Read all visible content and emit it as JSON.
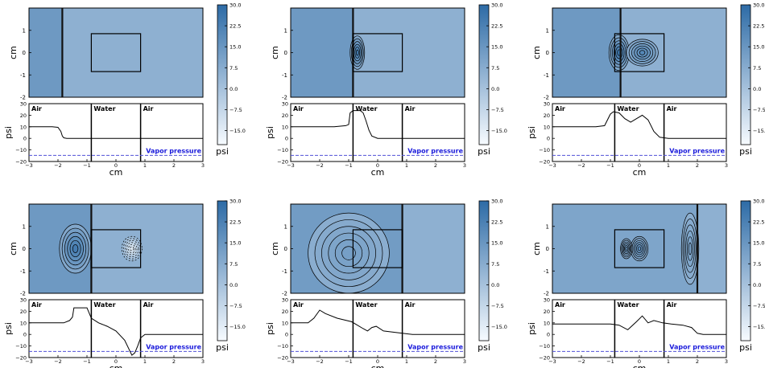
{
  "chart_data": [
    {
      "type": "line",
      "panel": 1,
      "materials": [
        "Air",
        "Water",
        "Air"
      ],
      "water_box": {
        "x": [
          -0.85,
          0.85
        ],
        "y": [
          -0.85,
          0.85
        ]
      },
      "shock_x": -1.85,
      "field": {
        "left_value": 14,
        "right_value": 6,
        "extrema": []
      },
      "top_plot": {
        "ylabel": "cm",
        "xlim": [
          -3,
          3
        ],
        "ylim": [
          -2,
          2
        ],
        "yticks": [
          "1",
          "0",
          "-1",
          "-2"
        ]
      },
      "bottom_plot": {
        "xlabel": "cm",
        "ylabel": "psi",
        "xlim": [
          -3,
          3
        ],
        "ylim": [
          -20,
          30
        ],
        "xticks": [
          "−3",
          "−2",
          "−1",
          "0",
          "1",
          "2",
          "3"
        ],
        "yticks": [
          "30",
          "20",
          "10",
          "0",
          "−10",
          "−20"
        ],
        "vapor_pressure_label": "Vapor pressure",
        "vapor_pressure": -14.7,
        "x": [
          -3,
          -2.2,
          -2.0,
          -1.9,
          -1.85,
          -1.8,
          -1.7,
          -0.85,
          0,
          1,
          3
        ],
        "y": [
          10,
          10,
          9.5,
          6,
          2,
          0.5,
          0,
          0,
          0,
          0,
          0
        ]
      },
      "colorbar": {
        "ticks": [
          "30.0",
          "22.5",
          "15.0",
          "7.5",
          "0.0",
          "−7.5",
          "−15.0"
        ],
        "label": "psi",
        "range": [
          -20,
          30
        ]
      }
    },
    {
      "type": "line",
      "panel": 2,
      "materials": [
        "Air",
        "Water",
        "Air"
      ],
      "water_box": {
        "x": [
          -0.85,
          0.85
        ],
        "y": [
          -0.85,
          0.85
        ]
      },
      "shock_x": -0.85,
      "field": {
        "left_value": 14,
        "right_value": 6,
        "extrema": [
          {
            "x": -0.7,
            "y": 0,
            "value": 24,
            "rx": 0.25,
            "ry": 0.75
          }
        ]
      },
      "top_plot": {
        "ylabel": "cm",
        "xlim": [
          -3,
          3
        ],
        "ylim": [
          -2,
          2
        ],
        "yticks": [
          "1",
          "0",
          "-1",
          "-2"
        ]
      },
      "bottom_plot": {
        "xlabel": "cm",
        "ylabel": "psi",
        "xlim": [
          -3,
          3
        ],
        "ylim": [
          -20,
          30
        ],
        "xticks": [
          "−3",
          "−2",
          "−1",
          "0",
          "1",
          "2",
          "3"
        ],
        "yticks": [
          "30",
          "20",
          "10",
          "0",
          "−10",
          "−20"
        ],
        "vapor_pressure_label": "Vapor pressure",
        "vapor_pressure": -14.7,
        "x": [
          -3,
          -1.5,
          -1.1,
          -1.0,
          -0.95,
          -0.85,
          -0.6,
          -0.5,
          -0.4,
          -0.3,
          -0.2,
          0,
          0.85,
          3
        ],
        "y": [
          10,
          10,
          11,
          12,
          22,
          24,
          24,
          22,
          15,
          7,
          2,
          0,
          0,
          0
        ]
      },
      "colorbar": {
        "ticks": [
          "30.0",
          "22.5",
          "15.0",
          "7.5",
          "0.0",
          "−7.5",
          "−15.0"
        ],
        "label": "psi",
        "range": [
          -20,
          30
        ]
      }
    },
    {
      "type": "line",
      "panel": 3,
      "materials": [
        "Air",
        "Water",
        "Air"
      ],
      "water_box": {
        "x": [
          -0.85,
          0.85
        ],
        "y": [
          -0.85,
          0.85
        ]
      },
      "shock_x": -0.65,
      "field": {
        "left_value": 14,
        "right_value": 6,
        "extrema": [
          {
            "x": -0.7,
            "y": 0,
            "value": 26,
            "rx": 0.35,
            "ry": 0.8
          },
          {
            "x": 0.1,
            "y": 0,
            "value": 20,
            "rx": 0.55,
            "ry": 0.6
          }
        ]
      },
      "top_plot": {
        "ylabel": "cm",
        "xlim": [
          -3,
          3
        ],
        "ylim": [
          -2,
          2
        ],
        "yticks": [
          "1",
          "0",
          "-1",
          "-2"
        ]
      },
      "bottom_plot": {
        "xlabel": "cm",
        "ylabel": "psi",
        "xlim": [
          -3,
          3
        ],
        "ylim": [
          -20,
          30
        ],
        "xticks": [
          "−3",
          "−2",
          "−1",
          "0",
          "1",
          "2",
          "3"
        ],
        "yticks": [
          "30",
          "20",
          "10",
          "0",
          "−10",
          "−20"
        ],
        "vapor_pressure_label": "Vapor pressure",
        "vapor_pressure": -14.7,
        "x": [
          -3,
          -1.5,
          -1.2,
          -1.0,
          -0.9,
          -0.7,
          -0.5,
          -0.3,
          -0.1,
          0.1,
          0.3,
          0.5,
          0.7,
          1.0,
          3
        ],
        "y": [
          10,
          10,
          11,
          21,
          23,
          22,
          17,
          14,
          17,
          20,
          16,
          6,
          1,
          0,
          0
        ]
      },
      "colorbar": {
        "ticks": [
          "30.0",
          "22.5",
          "15.0",
          "7.5",
          "0.0",
          "−7.5",
          "−15.0"
        ],
        "label": "psi",
        "range": [
          -20,
          30
        ]
      }
    },
    {
      "type": "line",
      "panel": 4,
      "materials": [
        "Air",
        "Water",
        "Air"
      ],
      "water_box": {
        "x": [
          -0.85,
          0.85
        ],
        "y": [
          -0.85,
          0.85
        ]
      },
      "shock_x": -0.85,
      "field": {
        "left_value": 14,
        "right_value": 6,
        "extrema": [
          {
            "x": -1.4,
            "y": 0,
            "value": 24,
            "rx": 0.55,
            "ry": 1.1
          },
          {
            "x": 0.55,
            "y": 0,
            "value": -14,
            "rx": 0.35,
            "ry": 0.55
          }
        ]
      },
      "top_plot": {
        "ylabel": "cm",
        "xlim": [
          -3,
          3
        ],
        "ylim": [
          -2,
          2
        ],
        "yticks": [
          "1",
          "0",
          "-1",
          "-2"
        ]
      },
      "bottom_plot": {
        "xlabel": "cm",
        "ylabel": "psi",
        "xlim": [
          -3,
          3
        ],
        "ylim": [
          -20,
          30
        ],
        "xticks": [
          "−3",
          "−2",
          "−1",
          "0",
          "1",
          "2",
          "3"
        ],
        "yticks": [
          "30",
          "20",
          "10",
          "0",
          "−10",
          "−20"
        ],
        "vapor_pressure_label": "Vapor pressure",
        "vapor_pressure": -14.7,
        "x": [
          -3,
          -1.8,
          -1.6,
          -1.5,
          -1.45,
          -1.0,
          -0.85,
          -0.6,
          -0.3,
          0,
          0.3,
          0.55,
          0.65,
          0.75,
          0.85,
          1.0,
          3
        ],
        "y": [
          10,
          10,
          12,
          15,
          23,
          23,
          14,
          10,
          7,
          3,
          -5,
          -18,
          -16,
          -10,
          -3,
          0,
          0
        ]
      },
      "colorbar": {
        "ticks": [
          "30.0",
          "22.5",
          "15.0",
          "7.5",
          "0.0",
          "−7.5",
          "−15.0"
        ],
        "label": "psi",
        "range": [
          -20,
          30
        ]
      }
    },
    {
      "type": "line",
      "panel": 5,
      "materials": [
        "Air",
        "Water",
        "Air"
      ],
      "water_box": {
        "x": [
          -0.85,
          0.85
        ],
        "y": [
          -0.85,
          0.85
        ]
      },
      "shock_x": 0.85,
      "field": {
        "left_value": 13,
        "right_value": 6,
        "extrema": [
          {
            "x": -1.9,
            "y": 0,
            "value": 22,
            "rx": 0.4,
            "ry": 0.75
          },
          {
            "x": -0.3,
            "y": 0,
            "value": 16,
            "rx": 0.45,
            "ry": 0.55
          },
          {
            "x": -1.0,
            "y": -0.2,
            "value": 12,
            "rx": 1.4,
            "ry": 1.8
          }
        ]
      },
      "top_plot": {
        "ylabel": "cm",
        "xlim": [
          -3,
          3
        ],
        "ylim": [
          -2,
          2
        ],
        "yticks": [
          "1",
          "0",
          "-1",
          "-2"
        ]
      },
      "bottom_plot": {
        "xlabel": "cm",
        "ylabel": "psi",
        "xlim": [
          -3,
          3
        ],
        "ylim": [
          -20,
          30
        ],
        "xticks": [
          "−3",
          "−2",
          "−1",
          "0",
          "1",
          "2",
          "3"
        ],
        "yticks": [
          "30",
          "20",
          "10",
          "0",
          "−10",
          "−20"
        ],
        "vapor_pressure_label": "Vapor pressure",
        "vapor_pressure": -14.7,
        "x": [
          -3,
          -2.4,
          -2.2,
          -2.0,
          -1.8,
          -1.4,
          -0.9,
          -0.5,
          -0.35,
          -0.2,
          -0.05,
          0.2,
          0.85,
          1.2,
          3
        ],
        "y": [
          10,
          10,
          14,
          21,
          18,
          14,
          11,
          5,
          3,
          6,
          7,
          3,
          1,
          0,
          0
        ]
      },
      "colorbar": {
        "ticks": [
          "30.0",
          "22.5",
          "15.0",
          "7.5",
          "0.0",
          "−7.5",
          "−15.0"
        ],
        "label": "psi",
        "range": [
          -20,
          30
        ]
      }
    },
    {
      "type": "line",
      "panel": 6,
      "materials": [
        "Air",
        "Water",
        "Air"
      ],
      "water_box": {
        "x": [
          -0.85,
          0.85
        ],
        "y": [
          -0.85,
          0.85
        ]
      },
      "shock_x": 2.0,
      "field": {
        "left_value": 10,
        "right_value": 6,
        "extrema": [
          {
            "x": 0.0,
            "y": 0,
            "value": 18,
            "rx": 0.3,
            "ry": 0.55
          },
          {
            "x": -0.45,
            "y": 0,
            "value": 14,
            "rx": 0.2,
            "ry": 0.45
          },
          {
            "x": 1.75,
            "y": 0,
            "value": 11,
            "rx": 0.3,
            "ry": 1.6
          }
        ]
      },
      "top_plot": {
        "ylabel": "cm",
        "xlim": [
          -3,
          3
        ],
        "ylim": [
          -2,
          2
        ],
        "yticks": [
          "1",
          "0",
          "-1",
          "-2"
        ]
      },
      "bottom_plot": {
        "xlabel": "cm",
        "ylabel": "psi",
        "xlim": [
          -3,
          3
        ],
        "ylim": [
          -20,
          30
        ],
        "xticks": [
          "−3",
          "−2",
          "−1",
          "0",
          "1",
          "2",
          "3"
        ],
        "yticks": [
          "30",
          "20",
          "10",
          "0",
          "−10",
          "−20"
        ],
        "vapor_pressure_label": "Vapor pressure",
        "vapor_pressure": -14.7,
        "x": [
          -3,
          -1.5,
          -1.0,
          -0.7,
          -0.4,
          -0.1,
          0.1,
          0.3,
          0.5,
          0.8,
          1.1,
          1.5,
          1.8,
          2.0,
          2.2,
          3
        ],
        "y": [
          9,
          9,
          9,
          8,
          4,
          11,
          16,
          10,
          12,
          10,
          9,
          8,
          6,
          1,
          0,
          0
        ]
      },
      "colorbar": {
        "ticks": [
          "30.0",
          "22.5",
          "15.0",
          "7.5",
          "0.0",
          "−7.5",
          "−15.0"
        ],
        "label": "psi",
        "range": [
          -20,
          30
        ]
      }
    }
  ],
  "style": {
    "field_low": "#f7fbff",
    "field_high": "#2d6ba6",
    "curve_color": "#000000",
    "vapor_color": "#5050d8",
    "vapor_label_color": "#1a1adb",
    "contour_color": "#000000"
  }
}
